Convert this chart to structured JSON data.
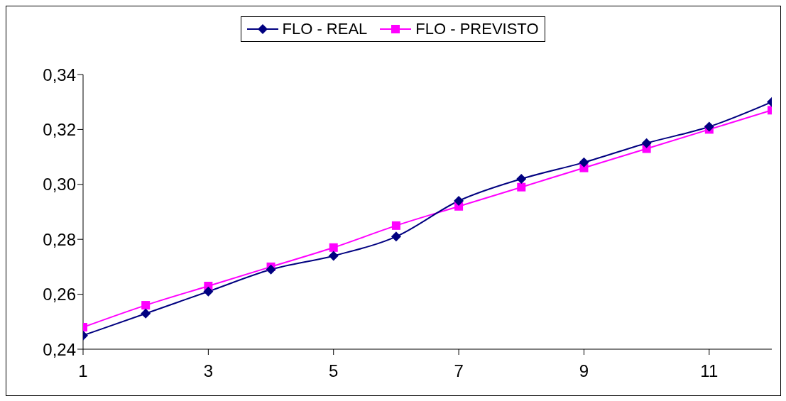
{
  "chart_data": {
    "type": "line",
    "x": [
      1,
      2,
      3,
      4,
      5,
      6,
      7,
      8,
      9,
      10,
      11,
      12
    ],
    "series": [
      {
        "name": "FLO - REAL",
        "color": "#000080",
        "marker": "diamond",
        "values": [
          0.245,
          0.253,
          0.261,
          0.269,
          0.274,
          0.281,
          0.294,
          0.302,
          0.308,
          0.315,
          0.321,
          0.33
        ]
      },
      {
        "name": "FLO - PREVISTO",
        "color": "#ff00ff",
        "marker": "square",
        "values": [
          0.248,
          0.256,
          0.263,
          0.27,
          0.277,
          0.285,
          0.292,
          0.299,
          0.306,
          0.313,
          0.32,
          0.327
        ]
      }
    ],
    "xlim": [
      1,
      12
    ],
    "xticks": [
      1,
      3,
      5,
      7,
      9,
      11
    ],
    "ylim": [
      0.24,
      0.34
    ],
    "yticks": [
      {
        "value": 0.24,
        "label": "0,24"
      },
      {
        "value": 0.26,
        "label": "0,26"
      },
      {
        "value": 0.28,
        "label": "0,28"
      },
      {
        "value": 0.3,
        "label": "0,30"
      },
      {
        "value": 0.32,
        "label": "0,32"
      },
      {
        "value": 0.34,
        "label": "0,34"
      }
    ],
    "grid": false,
    "legend": "top",
    "line_style": "solid"
  }
}
